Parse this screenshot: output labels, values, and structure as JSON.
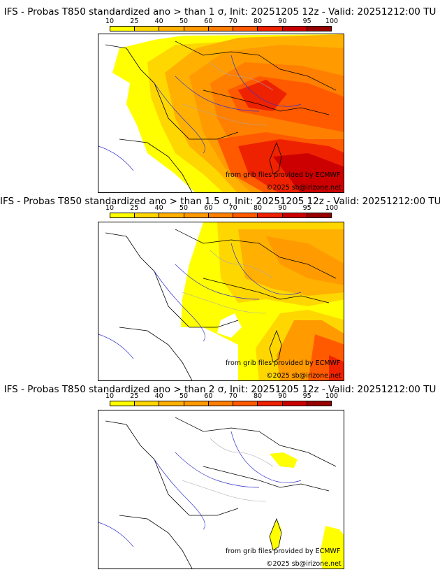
{
  "colorbar": {
    "ticks": [
      "10",
      "25",
      "40",
      "50",
      "60",
      "70",
      "80",
      "90",
      "95",
      "100"
    ],
    "colors": [
      "#ffff00",
      "#ffd700",
      "#ffb000",
      "#ff9a00",
      "#ff7f00",
      "#ff5a00",
      "#ee2200",
      "#cc0000",
      "#990000"
    ]
  },
  "panels": [
    {
      "title": "IFS - Probas T850  standardized ano > than 1 σ, Init: 20251205 12z - Valid: 20251212:00 TU",
      "credit_source": "from grib files provided by ECMWF",
      "credit_copyright": "©2025 sb@irizone.net"
    },
    {
      "title": "IFS - Probas T850  standardized ano > than 1.5 σ, Init: 20251205 12z - Valid: 20251212:00 TU",
      "credit_source": "from grib files provided by ECMWF",
      "credit_copyright": "©2025 sb@irizone.net"
    },
    {
      "title": "IFS - Probas T850  standardized ano > than 2 σ, Init: 20251205 12z - Valid: 20251212:00 TU",
      "credit_source": "from grib files provided by ECMWF",
      "credit_copyright": "©2025 sb@irizone.net"
    }
  ],
  "palette": {
    "border": "#000000",
    "rivers": "#3333cc",
    "regions": "#aaaaaa"
  }
}
